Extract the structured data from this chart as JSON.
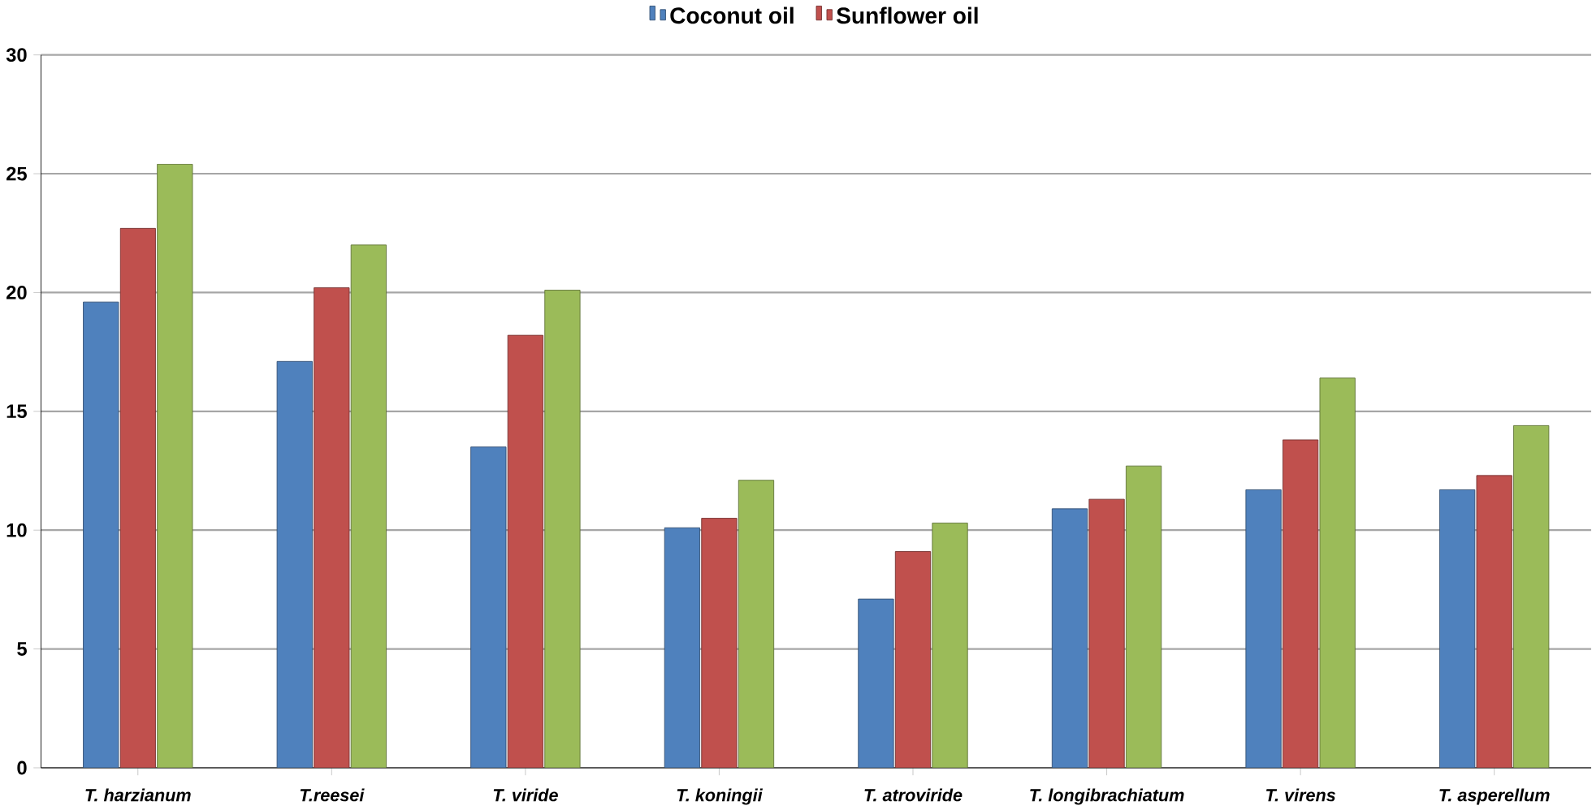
{
  "chart_data": {
    "type": "bar",
    "categories": [
      "T. harzianum",
      "T.reesei",
      "T. viride",
      "T. koningii",
      "T. atroviride",
      "T. longibrachiatum",
      "T. virens",
      "T. asperellum"
    ],
    "series": [
      {
        "name": "Coconut oil",
        "color": "#4f81bd",
        "values": [
          19.6,
          17.1,
          13.5,
          10.1,
          7.1,
          10.9,
          11.7,
          11.7
        ]
      },
      {
        "name": "Sunflower oil",
        "color": "#c0504d",
        "values": [
          22.7,
          20.2,
          18.2,
          10.5,
          9.1,
          11.3,
          13.8,
          12.3
        ]
      },
      {
        "color": "#9bbb59",
        "values": [
          25.4,
          22.0,
          20.1,
          12.1,
          10.3,
          12.7,
          16.4,
          14.4
        ]
      }
    ],
    "ylim": [
      0,
      30
    ],
    "yticks": [
      0,
      5,
      10,
      15,
      20,
      25,
      30
    ],
    "grid": "y",
    "legend": "top"
  }
}
